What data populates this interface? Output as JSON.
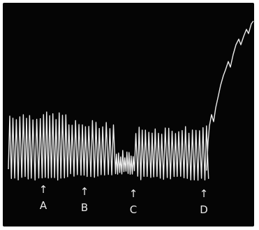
{
  "figure": {
    "background": "#050505",
    "trace_color": "#ececec",
    "markers": [
      {
        "id": "A",
        "label": "A",
        "arrow": "↑"
      },
      {
        "id": "B",
        "label": "B",
        "arrow": "↑"
      },
      {
        "id": "C",
        "label": "C",
        "arrow": "↑"
      },
      {
        "id": "D",
        "label": "D",
        "arrow": "↑"
      }
    ]
  }
}
